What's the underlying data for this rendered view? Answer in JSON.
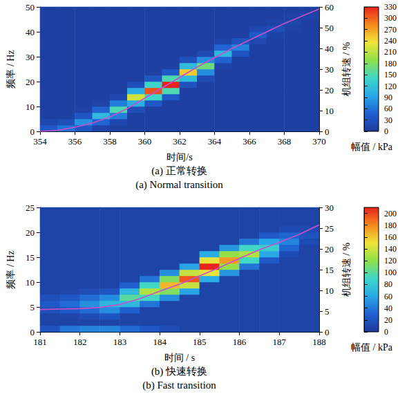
{
  "chart_data": [
    {
      "type": "heatmap",
      "title": "(a) 正常转换",
      "subtitle": "(a) Normal transition",
      "x_label": "时间/s",
      "y_label": "频率 / Hz",
      "y2_label": "机组转速 / %",
      "colorbar_label": "幅值 / kPa",
      "grid": false,
      "xlim": [
        354,
        370
      ],
      "xticks": [
        354,
        356,
        358,
        360,
        362,
        364,
        366,
        368,
        370
      ],
      "ylim": [
        0,
        50
      ],
      "yticks": [
        0,
        10,
        20,
        30,
        40,
        50
      ],
      "y2lim": [
        0,
        60
      ],
      "y2ticks": [
        0,
        10,
        20,
        30,
        40,
        50,
        60
      ],
      "colorbar_range": [
        0,
        330
      ],
      "colorbar_ticks": [
        0,
        30,
        60,
        90,
        120,
        150,
        180,
        210,
        240,
        270,
        300,
        330
      ],
      "x": [
        354.5,
        355.5,
        356.5,
        357.5,
        358.5,
        359.5,
        360.5,
        361.5,
        362.5,
        363.5,
        364.5,
        365.5,
        366.5,
        367.5,
        368.5,
        369.5
      ],
      "y": [
        1.25,
        3.75,
        6.25,
        8.75,
        11.25,
        13.75,
        16.25,
        18.75,
        21.25,
        23.75,
        26.25,
        28.75,
        31.25,
        33.75,
        36.25,
        38.75,
        41.25,
        43.75,
        46.25,
        48.75
      ],
      "z": [
        [
          40,
          60,
          36,
          13,
          8,
          8,
          8,
          8,
          8,
          8,
          8,
          8,
          8,
          8,
          8,
          8
        ],
        [
          18,
          27,
          80,
          50,
          18,
          8,
          8,
          8,
          8,
          8,
          8,
          8,
          8,
          8,
          8,
          8
        ],
        [
          8,
          8,
          36,
          110,
          68,
          8,
          8,
          8,
          8,
          8,
          8,
          8,
          8,
          8,
          8,
          8
        ],
        [
          8,
          8,
          10,
          50,
          150,
          26,
          8,
          8,
          8,
          8,
          8,
          8,
          8,
          8,
          8,
          8
        ],
        [
          8,
          8,
          8,
          13,
          68,
          100,
          37,
          8,
          8,
          8,
          8,
          8,
          8,
          8,
          8,
          8
        ],
        [
          8,
          8,
          8,
          8,
          18,
          220,
          140,
          40,
          8,
          8,
          8,
          8,
          8,
          8,
          8,
          8
        ],
        [
          8,
          8,
          8,
          8,
          8,
          100,
          310,
          150,
          8,
          8,
          8,
          8,
          8,
          8,
          8,
          8
        ],
        [
          8,
          8,
          8,
          8,
          8,
          26,
          140,
          330,
          30,
          8,
          8,
          8,
          8,
          8,
          8,
          8
        ],
        [
          8,
          8,
          8,
          8,
          8,
          8,
          37,
          150,
          113,
          20,
          8,
          8,
          8,
          8,
          8,
          8
        ],
        [
          8,
          8,
          8,
          8,
          8,
          8,
          8,
          40,
          250,
          77,
          8,
          8,
          8,
          8,
          8,
          8
        ],
        [
          8,
          8,
          8,
          8,
          8,
          8,
          8,
          8,
          113,
          170,
          13,
          8,
          8,
          8,
          8,
          8
        ],
        [
          8,
          8,
          8,
          8,
          8,
          8,
          8,
          8,
          30,
          77,
          50,
          8,
          8,
          8,
          8,
          8
        ],
        [
          8,
          8,
          8,
          8,
          8,
          8,
          8,
          8,
          8,
          20,
          110,
          32,
          8,
          8,
          8,
          8
        ],
        [
          8,
          8,
          8,
          8,
          8,
          8,
          8,
          8,
          8,
          8,
          50,
          70,
          8,
          8,
          8,
          8
        ],
        [
          8,
          8,
          8,
          8,
          8,
          8,
          8,
          8,
          8,
          8,
          13,
          32,
          18,
          8,
          8,
          8
        ],
        [
          8,
          8,
          8,
          8,
          8,
          8,
          8,
          8,
          8,
          8,
          8,
          8,
          40,
          12,
          8,
          8
        ],
        [
          8,
          8,
          8,
          8,
          8,
          8,
          8,
          8,
          8,
          8,
          8,
          8,
          18,
          25,
          10,
          8
        ],
        [
          8,
          8,
          8,
          8,
          8,
          8,
          8,
          8,
          8,
          8,
          8,
          8,
          8,
          12,
          15,
          8
        ],
        [
          8,
          8,
          8,
          8,
          8,
          8,
          8,
          8,
          8,
          8,
          8,
          8,
          8,
          8,
          10,
          12
        ],
        [
          8,
          8,
          8,
          8,
          8,
          8,
          8,
          8,
          8,
          8,
          8,
          8,
          8,
          8,
          8,
          8
        ]
      ],
      "series": [
        {
          "type": "line",
          "axis": "y2",
          "color": "#c850c8",
          "x": [
            354,
            355,
            356,
            357,
            358,
            359,
            360,
            361,
            362,
            363,
            364,
            365,
            366,
            367,
            368,
            369,
            370
          ],
          "values": [
            0,
            0.5,
            2,
            4,
            7,
            11,
            16,
            21,
            26,
            31,
            35.5,
            40,
            44,
            48,
            52,
            55.5,
            59
          ]
        }
      ]
    },
    {
      "type": "heatmap",
      "title": "(b) 快速转换",
      "subtitle": "(b) Fast transition",
      "x_label": "时间 / s",
      "y_label": "频率 / Hz",
      "y2_label": "机组转速 / %",
      "colorbar_label": "幅值 / kPa",
      "grid": false,
      "xlim": [
        181,
        188
      ],
      "xticks": [
        181,
        182,
        183,
        184,
        185,
        186,
        187,
        188
      ],
      "ylim": [
        0,
        25
      ],
      "yticks": [
        0,
        5,
        10,
        15,
        20,
        25
      ],
      "y2lim": [
        0,
        30
      ],
      "y2ticks": [
        0,
        5,
        10,
        15,
        20,
        25,
        30
      ],
      "colorbar_range": [
        0,
        210
      ],
      "colorbar_ticks": [
        0,
        20,
        40,
        60,
        80,
        100,
        120,
        140,
        160,
        180,
        200
      ],
      "x": [
        181.25,
        181.75,
        182.25,
        182.75,
        183.25,
        183.75,
        184.25,
        184.75,
        185.25,
        185.75,
        186.25,
        186.75,
        187.25,
        187.75
      ],
      "y": [
        0.625,
        1.875,
        3.125,
        4.375,
        5.625,
        6.875,
        8.125,
        9.375,
        10.625,
        11.875,
        13.125,
        14.375,
        15.625,
        16.875,
        18.125,
        19.375,
        20.625,
        21.875,
        23.125,
        24.375
      ],
      "z": [
        [
          20,
          40,
          45,
          45,
          35,
          25,
          15,
          8,
          8,
          8,
          8,
          8,
          8,
          8
        ],
        [
          8,
          8,
          8,
          8,
          8,
          8,
          8,
          8,
          8,
          8,
          8,
          8,
          8,
          8
        ],
        [
          8,
          10,
          15,
          21,
          8,
          8,
          8,
          8,
          8,
          8,
          8,
          8,
          8,
          8
        ],
        [
          18,
          25,
          35,
          49,
          30,
          8,
          8,
          8,
          8,
          8,
          8,
          8,
          8,
          8
        ],
        [
          25,
          35,
          50,
          70,
          70,
          39,
          8,
          8,
          8,
          8,
          8,
          8,
          8,
          8
        ],
        [
          18,
          25,
          35,
          49,
          100,
          91,
          50,
          8,
          8,
          8,
          8,
          8,
          8,
          8
        ],
        [
          8,
          10,
          15,
          21,
          70,
          130,
          115,
          58,
          8,
          8,
          8,
          8,
          8,
          8
        ],
        [
          8,
          8,
          8,
          8,
          30,
          91,
          165,
          137,
          8,
          8,
          8,
          8,
          8,
          8
        ],
        [
          8,
          8,
          8,
          8,
          8,
          39,
          115,
          195,
          63,
          8,
          8,
          8,
          8,
          8
        ],
        [
          8,
          8,
          8,
          8,
          8,
          8,
          50,
          137,
          147,
          52,
          8,
          8,
          8,
          8
        ],
        [
          8,
          8,
          8,
          8,
          8,
          8,
          8,
          58,
          210,
          122,
          39,
          8,
          8,
          8
        ],
        [
          8,
          8,
          8,
          8,
          8,
          8,
          8,
          8,
          147,
          175,
          91,
          25,
          8,
          8
        ],
        [
          8,
          8,
          8,
          8,
          8,
          8,
          8,
          8,
          63,
          122,
          130,
          60,
          14,
          8
        ],
        [
          8,
          8,
          8,
          8,
          8,
          8,
          8,
          8,
          8,
          52,
          91,
          85,
          32,
          8
        ],
        [
          8,
          8,
          8,
          8,
          8,
          8,
          8,
          8,
          8,
          8,
          39,
          60,
          45,
          14
        ],
        [
          8,
          8,
          8,
          8,
          8,
          8,
          8,
          8,
          8,
          8,
          8,
          25,
          32,
          20
        ],
        [
          8,
          8,
          8,
          8,
          8,
          8,
          8,
          8,
          8,
          8,
          8,
          8,
          14,
          14
        ],
        [
          8,
          8,
          8,
          8,
          8,
          8,
          8,
          8,
          8,
          8,
          8,
          8,
          8,
          8
        ],
        [
          8,
          8,
          8,
          8,
          8,
          8,
          8,
          8,
          8,
          8,
          8,
          8,
          8,
          8
        ],
        [
          8,
          8,
          8,
          8,
          8,
          8,
          8,
          8,
          8,
          8,
          8,
          8,
          8,
          8
        ]
      ],
      "series": [
        {
          "type": "line",
          "axis": "y2",
          "color": "#c850c8",
          "x": [
            181,
            181.5,
            182,
            182.5,
            183,
            183.5,
            184,
            184.5,
            185,
            185.5,
            186,
            186.5,
            187,
            187.5,
            188
          ],
          "values": [
            5.4,
            5.5,
            5.6,
            5.9,
            6.6,
            8,
            9.8,
            11.5,
            13.5,
            15.5,
            17.7,
            19.8,
            21.6,
            23.5,
            25.8
          ]
        }
      ]
    }
  ]
}
